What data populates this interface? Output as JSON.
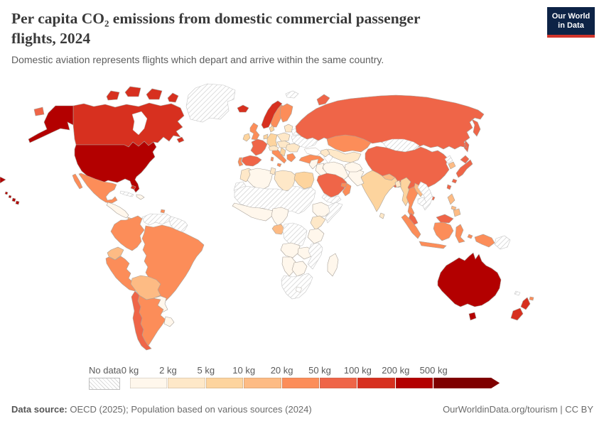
{
  "header": {
    "title": "Per capita CO₂ emissions from domestic commercial passenger flights, 2024",
    "subtitle": "Domestic aviation represents flights which depart and arrive within the same country.",
    "logo": {
      "line1": "Our World",
      "line2": "in Data",
      "bg": "#0d2346",
      "accent": "#d1342b"
    }
  },
  "legend": {
    "no_data_label": "No data",
    "labels": [
      "0 kg",
      "2 kg",
      "5 kg",
      "10 kg",
      "20 kg",
      "50 kg",
      "100 kg",
      "200 kg",
      "500 kg"
    ],
    "colors": [
      "#fff7ec",
      "#fee8c8",
      "#fdd49e",
      "#fdbb84",
      "#fc8d59",
      "#ef6548",
      "#d7301f",
      "#b30000",
      "#7f0000"
    ]
  },
  "footer": {
    "source_label": "Data source:",
    "source_text": " OECD (2025); Population based on various sources (2024)",
    "right_text": "OurWorldinData.org/tourism | CC BY"
  },
  "map": {
    "countries": {
      "usa": 7,
      "canada": 6,
      "greenland": "nodata",
      "mexico": 4,
      "central-america": 0,
      "panama": 3,
      "cuba": "nodata",
      "hispaniola": 0,
      "bahamas": 6,
      "trinidad": 4,
      "colombia": 4,
      "venezuela": "nodata",
      "guyana": "nodata",
      "brazil": 4,
      "ecuador": 3,
      "peru": 4,
      "bolivia": 3,
      "paraguay": 0,
      "uruguay": 0,
      "chile": 5,
      "argentina": 4,
      "iceland": 6,
      "norway": 6,
      "sweden": 4,
      "finland": 4,
      "uk": 4,
      "ireland": 2,
      "denmark": 2,
      "germany": 2,
      "benelux": 2,
      "france": 5,
      "spain": 5,
      "portugal": 4,
      "italy": 4,
      "switzerland-austria": 1,
      "czechia-hungary": 1,
      "poland": 1,
      "baltics": 1,
      "belarus": "nodata",
      "ukraine": "nodata",
      "romania-bulgaria": 1,
      "balkans": 2,
      "greece": 4,
      "turkey": 4,
      "svalbard": "nodata",
      "russia": 5,
      "kazakhstan": 4,
      "central-asia": 1,
      "caucasus": 1,
      "mongolia": "nodata",
      "china": 5,
      "taiwan": 5,
      "north-korea": "nodata",
      "south-korea": 3,
      "japan": 5,
      "india": 2,
      "pakistan": 0,
      "afghanistan": 0,
      "iran": 0,
      "iraq": 0,
      "levant": 0,
      "saudi-arabia": 5,
      "yemen": "nodata",
      "oman": 4,
      "uae": 4,
      "nepal": 3,
      "bangladesh": 1,
      "sri-lanka": 1,
      "myanmar": 2,
      "thailand": 4,
      "laos": 3,
      "vietnam": "nodata",
      "cambodia": "nodata",
      "malaysia": 5,
      "indonesia": 4,
      "philippines": 3,
      "papua-new-guinea": "nodata",
      "morocco": 1,
      "western-sahara": "nodata",
      "algeria": 0,
      "tunisia": 1,
      "libya": 1,
      "egypt": 2,
      "sahel": "nodata",
      "west-africa": 0,
      "nigeria": 0,
      "gabon": 3,
      "dr-congo": "nodata",
      "ethiopia": 0,
      "somalia": "nodata",
      "kenya": 1,
      "tanzania": 0,
      "angola": 0,
      "zambia": 0,
      "mozambique": "nodata",
      "namibia": 0,
      "botswana": 0,
      "south-africa": "nodata",
      "madagascar": 0,
      "australia": 7,
      "new-zealand": 6,
      "fiji": 4,
      "new-caledonia": "nodata"
    }
  }
}
